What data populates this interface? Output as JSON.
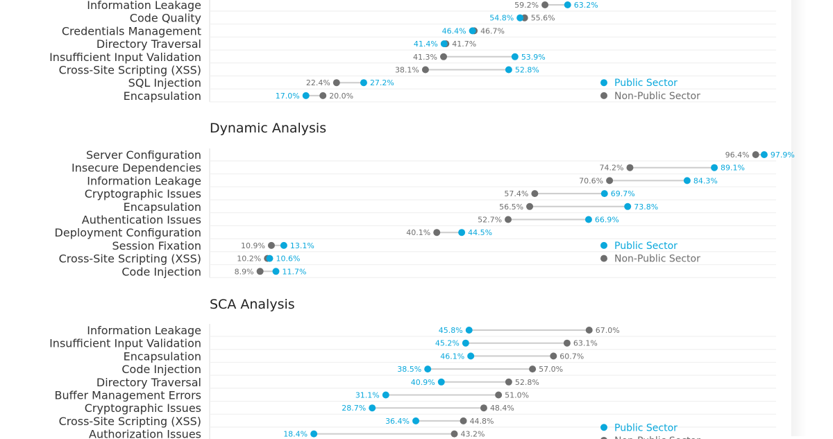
{
  "colors": {
    "public": "#0aa8dc",
    "non_public": "#6e6e6e",
    "connector": "#cccccc",
    "gridline": "#eeeeee",
    "axis": "#dddddd"
  },
  "chart_data": [
    {
      "type": "dumbbell",
      "title": "",
      "legend": [
        "Public Sector",
        "Non-Public Sector"
      ],
      "xlim": [
        0,
        100
      ],
      "categories": [
        "Information Leakage",
        "Code Quality",
        "Credentials Management",
        "Directory Traversal",
        "Insufficient Input Validation",
        "Cross-Site Scripting (XSS)",
        "SQL Injection",
        "Encapsulation"
      ],
      "series": [
        {
          "name": "Public Sector",
          "values": [
            63.2,
            54.8,
            46.4,
            41.4,
            53.9,
            52.8,
            27.2,
            17.0
          ]
        },
        {
          "name": "Non-Public Sector",
          "values": [
            59.2,
            55.6,
            46.7,
            41.7,
            41.3,
            38.1,
            22.4,
            20.0
          ]
        }
      ]
    },
    {
      "type": "dumbbell",
      "title": "Dynamic Analysis",
      "legend": [
        "Public Sector",
        "Non-Public Sector"
      ],
      "xlim": [
        0,
        100
      ],
      "categories": [
        "Server Configuration",
        "Insecure Dependencies",
        "Information Leakage",
        "Cryptographic Issues",
        "Encapsulation",
        "Authentication Issues",
        "Deployment Configuration",
        "Session Fixation",
        "Cross-Site Scripting (XSS)",
        "Code Injection"
      ],
      "series": [
        {
          "name": "Public Sector",
          "values": [
            97.9,
            89.1,
            84.3,
            69.7,
            73.8,
            66.9,
            44.5,
            13.1,
            10.6,
            11.7
          ]
        },
        {
          "name": "Non-Public Sector",
          "values": [
            96.4,
            74.2,
            70.6,
            57.4,
            56.5,
            52.7,
            40.1,
            10.9,
            10.2,
            8.9
          ]
        }
      ]
    },
    {
      "type": "dumbbell",
      "title": "SCA Analysis",
      "legend": [
        "Public Sector",
        "Non-Public Sector"
      ],
      "xlim": [
        0,
        100
      ],
      "categories": [
        "Information Leakage",
        "Insufficient Input Validation",
        "Encapsulation",
        "Code Injection",
        "Directory Traversal",
        "Buffer Management Errors",
        "Cryptographic Issues",
        "Cross-Site Scripting (XSS)",
        "Authorization Issues"
      ],
      "series": [
        {
          "name": "Public Sector",
          "values": [
            45.8,
            45.2,
            46.1,
            38.5,
            40.9,
            31.1,
            28.7,
            36.4,
            18.4
          ]
        },
        {
          "name": "Non-Public Sector",
          "values": [
            67.0,
            63.1,
            60.7,
            57.0,
            52.8,
            51.0,
            48.4,
            44.8,
            43.2
          ]
        }
      ]
    }
  ]
}
